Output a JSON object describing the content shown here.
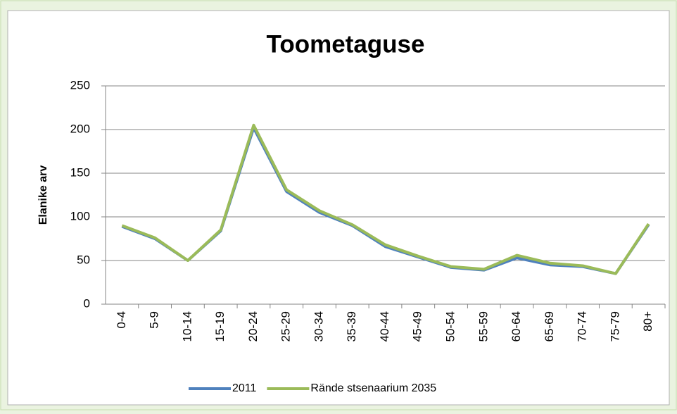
{
  "chart_data": {
    "type": "line",
    "title": "Toometaguse",
    "y_label": "Elanike arv",
    "categories": [
      "0-4",
      "5-9",
      "10-14",
      "15-19",
      "20-24",
      "25-29",
      "30-34",
      "35-39",
      "40-44",
      "45-49",
      "50-54",
      "55-59",
      "60-64",
      "65-69",
      "70-74",
      "75-79",
      "80+"
    ],
    "series": [
      {
        "name": "2011",
        "color": "#4f81bd",
        "values": [
          89,
          75,
          50,
          84,
          202,
          129,
          105,
          90,
          66,
          54,
          42,
          39,
          53,
          45,
          43,
          35,
          91
        ]
      },
      {
        "name": "Rände stsenaarium 2035",
        "color": "#9bbb59",
        "values": [
          90,
          76,
          50,
          85,
          205,
          131,
          107,
          91,
          68,
          55,
          43,
          40,
          56,
          47,
          44,
          35,
          92
        ]
      }
    ],
    "ylim": [
      0,
      250
    ],
    "yticks": [
      0,
      50,
      100,
      150,
      200,
      250
    ],
    "grid": true,
    "legend": "bottom"
  }
}
